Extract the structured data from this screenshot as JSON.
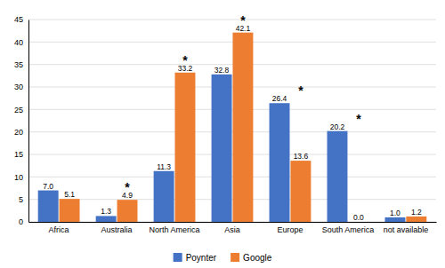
{
  "chart_data": {
    "type": "bar",
    "categories": [
      "Africa",
      "Australia",
      "North America",
      "Asia",
      "Europe",
      "South America",
      "not available"
    ],
    "series": [
      {
        "name": "Poynter",
        "color": "#4472C4",
        "values": [
          7.0,
          1.3,
          11.3,
          32.8,
          26.4,
          20.2,
          1.0
        ],
        "value_labels": [
          "7.0",
          "1.3",
          "11.3",
          "32.8",
          "26.4",
          "20.2",
          "1.0"
        ]
      },
      {
        "name": "Google",
        "color": "#ED7D31",
        "values": [
          5.1,
          4.9,
          33.2,
          42.1,
          13.6,
          0.0,
          1.2
        ],
        "value_labels": [
          "5.1",
          "4.9",
          "33.2",
          "42.1",
          "13.6",
          "0.0",
          "1.2"
        ]
      }
    ],
    "annotations": [
      {
        "text": "*",
        "category": "Australia",
        "series": "Google"
      },
      {
        "text": "*",
        "category": "North America",
        "series": "Google"
      },
      {
        "text": "*",
        "category": "Asia",
        "series": "Google"
      },
      {
        "text": "*",
        "category": "Europe",
        "series": "Google"
      },
      {
        "text": "*",
        "category": "South America",
        "series": "Google"
      }
    ],
    "ylim": [
      0,
      45
    ],
    "yticks": [
      0,
      5,
      10,
      15,
      20,
      25,
      30,
      35,
      40,
      45
    ],
    "grid": true,
    "data_labels": true,
    "legend": "bottom"
  }
}
